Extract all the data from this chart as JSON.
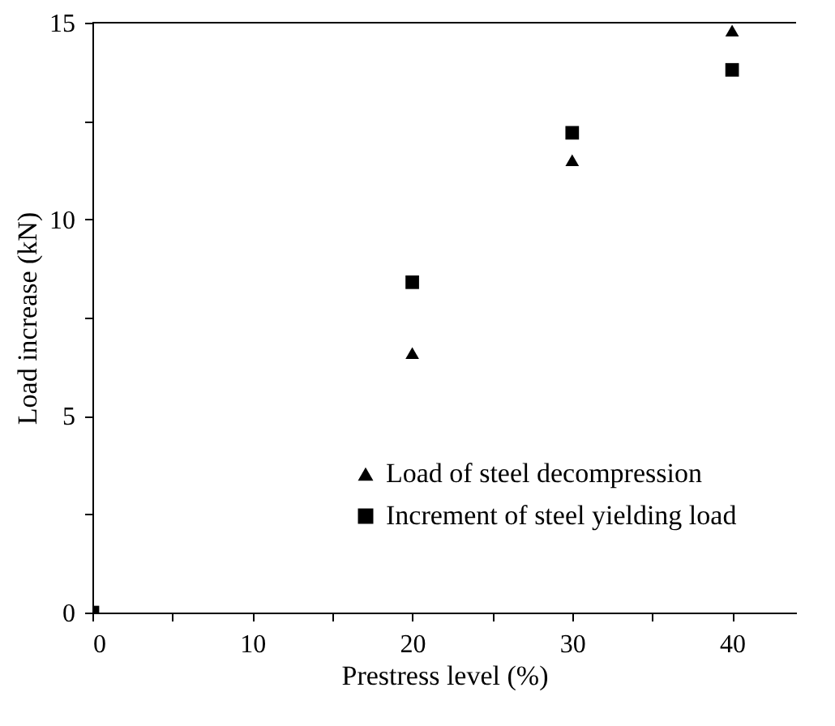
{
  "chart_data": {
    "type": "scatter",
    "xlabel": "Prestress level (%)",
    "ylabel": "Load increase (kN)",
    "x": [
      20,
      30,
      40
    ],
    "series": [
      {
        "name": "Load of steel decompression",
        "color": "#000000",
        "marker": "triangle",
        "values": [
          6.6,
          11.5,
          14.8
        ]
      },
      {
        "name": "Increment of steel yielding load",
        "color": "#000000",
        "marker": "square",
        "x": [
          0,
          20,
          30,
          40
        ],
        "values": [
          0,
          8.4,
          12.2,
          13.8
        ]
      }
    ],
    "xlim": [
      0,
      44
    ],
    "xticks": [
      0,
      {
        "value": 5,
        "label": null
      },
      10,
      {
        "value": 15,
        "label": null
      },
      20,
      {
        "value": 25,
        "label": null
      },
      30,
      {
        "value": 35,
        "label": null
      },
      40
    ],
    "ylim": [
      0,
      15
    ],
    "yticks": [
      0,
      {
        "value": 2.5,
        "label": null
      },
      5,
      {
        "value": 7.5,
        "label": null
      },
      10,
      {
        "value": 12.5,
        "label": null
      },
      15
    ],
    "grid": false,
    "legend": "bottom"
  }
}
